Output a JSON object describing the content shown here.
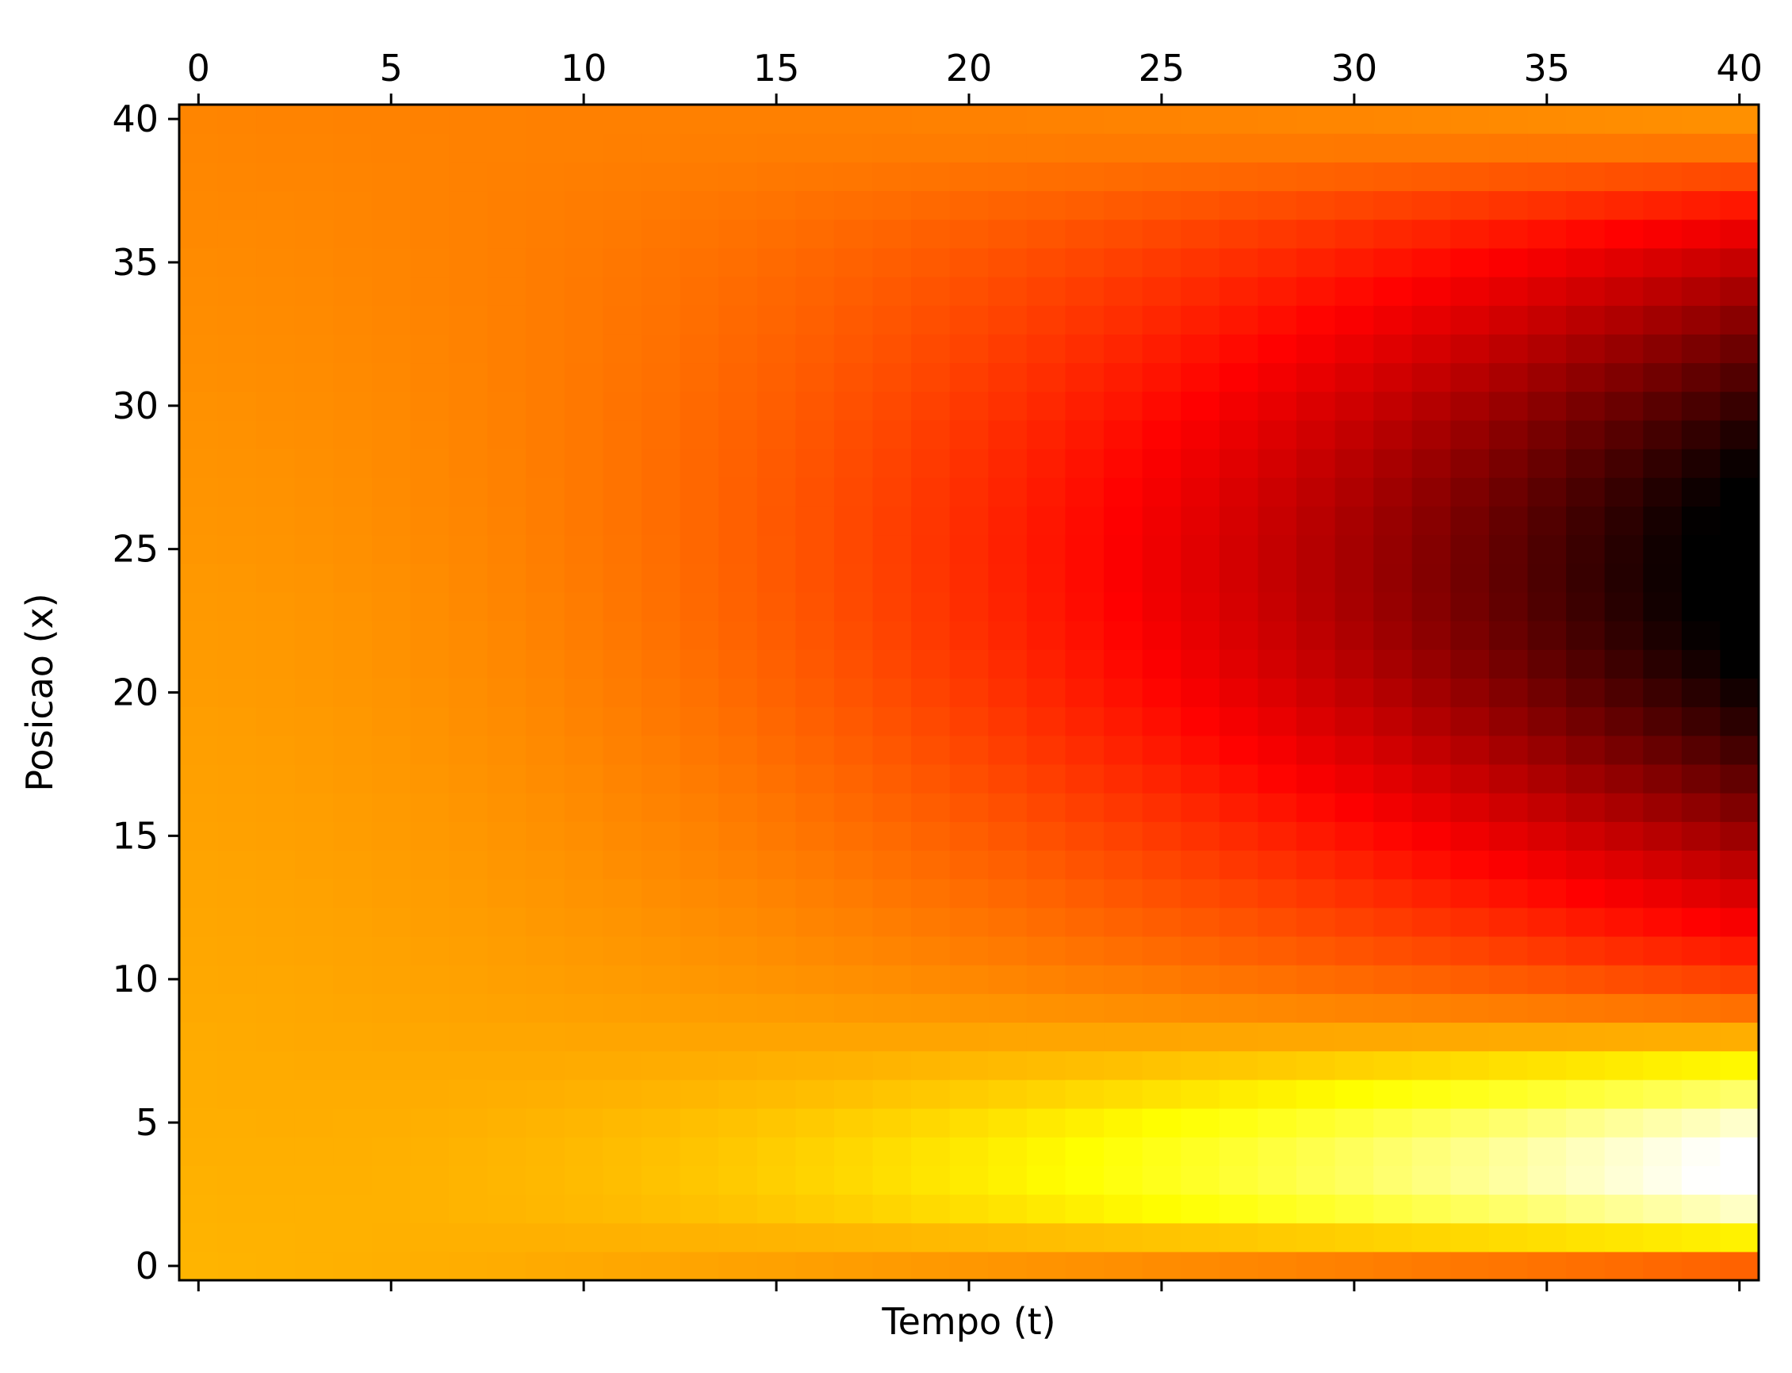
{
  "chart_data": {
    "type": "heatmap",
    "title": "",
    "xlabel": "Tempo (t)",
    "ylabel": "Posicao (x)",
    "x_ticks": [
      "0",
      "5",
      "10",
      "15",
      "20",
      "25",
      "30",
      "35",
      "40"
    ],
    "y_ticks": [
      "0",
      "5",
      "10",
      "15",
      "20",
      "25",
      "30",
      "35",
      "40"
    ],
    "x_tick_position": "top",
    "xlim": [
      -0.5,
      40.5
    ],
    "ylim": [
      -0.5,
      40.5
    ],
    "grid_size": [
      41,
      41
    ],
    "colormap": "hot",
    "grid": false,
    "legend": "none",
    "field_description_values": {
      "base_level": 0.55,
      "peaks": [
        {
          "t_center": 40,
          "x_center": 3.5,
          "peak_value": 1.0
        },
        {
          "t_center": 40,
          "x_center": 23,
          "peak_value": 0.0
        }
      ]
    }
  }
}
